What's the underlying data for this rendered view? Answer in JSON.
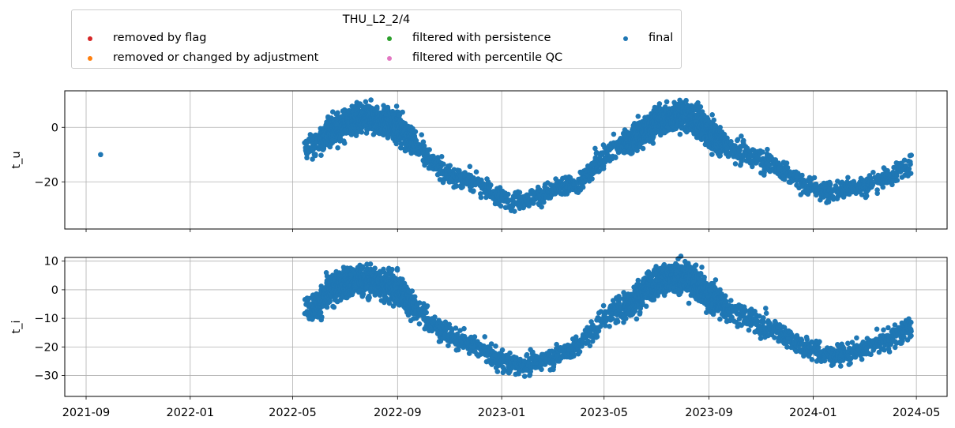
{
  "chart_data": {
    "type": "scatter",
    "legend": {
      "title": "THU_L2_2/4",
      "placement": "top",
      "entries": [
        {
          "label": "removed by flag",
          "color": "#d62728"
        },
        {
          "label": "removed or changed by adjustment",
          "color": "#ff7f0e"
        },
        {
          "label": "filtered with persistence",
          "color": "#2ca02c"
        },
        {
          "label": "filtered with percentile QC",
          "color": "#e377c2"
        },
        {
          "label": "final",
          "color": "#1f77b4"
        }
      ]
    },
    "x_axis": {
      "type": "date",
      "range": [
        "2021-08-07",
        "2024-06-06"
      ],
      "ticks": [
        "2021-09",
        "2022-01",
        "2022-05",
        "2022-09",
        "2023-01",
        "2023-05",
        "2023-09",
        "2024-01",
        "2024-05"
      ],
      "tick_labels": [
        "2021-09",
        "2022-01",
        "2022-05",
        "2022-09",
        "2023-01",
        "2023-05",
        "2023-09",
        "2024-01",
        "2024-05"
      ]
    },
    "grid": true,
    "panels": [
      {
        "ylabel": "t_u",
        "ylim": [
          -37.3,
          13.4
        ],
        "yticks": [
          0,
          -20
        ],
        "ytick_labels": [
          "0",
          "−20"
        ],
        "series": [
          {
            "name": "final",
            "color": "#1f77b4",
            "outlier_points": [
              [
                "2021-09-18",
                -10
              ]
            ],
            "curve": [
              [
                "2022-05-15",
                -8
              ],
              [
                "2022-06-01",
                -6
              ],
              [
                "2022-06-15",
                -1
              ],
              [
                "2022-07-01",
                1
              ],
              [
                "2022-07-15",
                3
              ],
              [
                "2022-08-01",
                3
              ],
              [
                "2022-08-15",
                2
              ],
              [
                "2022-09-01",
                0
              ],
              [
                "2022-09-15",
                -4
              ],
              [
                "2022-10-01",
                -9
              ],
              [
                "2022-10-15",
                -14
              ],
              [
                "2022-11-01",
                -17
              ],
              [
                "2022-11-15",
                -19
              ],
              [
                "2022-12-01",
                -20
              ],
              [
                "2022-12-15",
                -23
              ],
              [
                "2023-01-01",
                -26
              ],
              [
                "2023-01-15",
                -27
              ],
              [
                "2023-02-01",
                -26
              ],
              [
                "2023-02-15",
                -25
              ],
              [
                "2023-03-01",
                -24
              ],
              [
                "2023-03-15",
                -22
              ],
              [
                "2023-04-01",
                -21
              ],
              [
                "2023-04-15",
                -16
              ],
              [
                "2023-05-01",
                -10
              ],
              [
                "2023-05-15",
                -7
              ],
              [
                "2023-06-01",
                -5
              ],
              [
                "2023-06-15",
                -2
              ],
              [
                "2023-07-01",
                2
              ],
              [
                "2023-07-15",
                3
              ],
              [
                "2023-08-01",
                4
              ],
              [
                "2023-08-15",
                3
              ],
              [
                "2023-09-01",
                -2
              ],
              [
                "2023-09-15",
                -5
              ],
              [
                "2023-10-01",
                -8
              ],
              [
                "2023-10-15",
                -10
              ],
              [
                "2023-11-01",
                -12
              ],
              [
                "2023-11-15",
                -14
              ],
              [
                "2023-12-01",
                -17
              ],
              [
                "2023-12-15",
                -20
              ],
              [
                "2024-01-01",
                -22
              ],
              [
                "2024-01-15",
                -24
              ],
              [
                "2024-02-01",
                -23
              ],
              [
                "2024-02-15",
                -22
              ],
              [
                "2024-03-01",
                -22
              ],
              [
                "2024-03-15",
                -20
              ],
              [
                "2024-04-01",
                -18
              ],
              [
                "2024-04-15",
                -15
              ],
              [
                "2024-04-25",
                -12
              ]
            ]
          }
        ]
      },
      {
        "ylabel": "t_i",
        "ylim": [
          -37.3,
          11.3
        ],
        "yticks": [
          10,
          0,
          -10,
          -20,
          -30
        ],
        "ytick_labels": [
          "10",
          "0",
          "−10",
          "−20",
          "−30"
        ],
        "series": [
          {
            "name": "final",
            "color": "#1f77b4",
            "outlier_points": [],
            "curve": [
              [
                "2022-05-15",
                -7
              ],
              [
                "2022-06-01",
                -5
              ],
              [
                "2022-06-15",
                0
              ],
              [
                "2022-07-01",
                2
              ],
              [
                "2022-07-15",
                3
              ],
              [
                "2022-08-01",
                3
              ],
              [
                "2022-08-15",
                2
              ],
              [
                "2022-09-01",
                0
              ],
              [
                "2022-09-15",
                -4
              ],
              [
                "2022-10-01",
                -9
              ],
              [
                "2022-10-15",
                -13
              ],
              [
                "2022-11-01",
                -16
              ],
              [
                "2022-11-15",
                -18
              ],
              [
                "2022-12-01",
                -20
              ],
              [
                "2022-12-15",
                -22
              ],
              [
                "2023-01-01",
                -25
              ],
              [
                "2023-01-15",
                -26
              ],
              [
                "2023-02-01",
                -26
              ],
              [
                "2023-02-15",
                -25
              ],
              [
                "2023-03-01",
                -24
              ],
              [
                "2023-03-15",
                -22
              ],
              [
                "2023-04-01",
                -20
              ],
              [
                "2023-04-15",
                -15
              ],
              [
                "2023-05-01",
                -10
              ],
              [
                "2023-05-15",
                -7
              ],
              [
                "2023-06-01",
                -5
              ],
              [
                "2023-06-15",
                -1
              ],
              [
                "2023-07-01",
                3
              ],
              [
                "2023-07-15",
                4
              ],
              [
                "2023-08-01",
                4
              ],
              [
                "2023-08-15",
                3
              ],
              [
                "2023-09-01",
                -2
              ],
              [
                "2023-09-15",
                -5
              ],
              [
                "2023-10-01",
                -8
              ],
              [
                "2023-10-15",
                -10
              ],
              [
                "2023-11-01",
                -12
              ],
              [
                "2023-11-15",
                -14
              ],
              [
                "2023-12-01",
                -16
              ],
              [
                "2023-12-15",
                -19
              ],
              [
                "2024-01-01",
                -21
              ],
              [
                "2024-01-15",
                -23
              ],
              [
                "2024-02-01",
                -23
              ],
              [
                "2024-02-15",
                -22
              ],
              [
                "2024-03-01",
                -21
              ],
              [
                "2024-03-15",
                -19
              ],
              [
                "2024-04-01",
                -17
              ],
              [
                "2024-04-15",
                -15
              ],
              [
                "2024-04-25",
                -12
              ]
            ]
          }
        ]
      }
    ]
  }
}
